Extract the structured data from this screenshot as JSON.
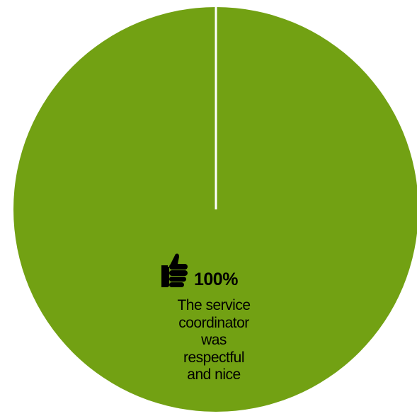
{
  "chart_data": {
    "type": "pie",
    "slices": [
      {
        "value": 100,
        "value_label": "100%",
        "label": "The service coordinator was respectful and nice",
        "label_lines": [
          "The service",
          "coordinator",
          "was",
          "respectful",
          "and nice"
        ],
        "color": "#72a113",
        "icon": "thumbs-up-icon"
      }
    ],
    "separator_color": "#ffffff",
    "legend": "none"
  }
}
